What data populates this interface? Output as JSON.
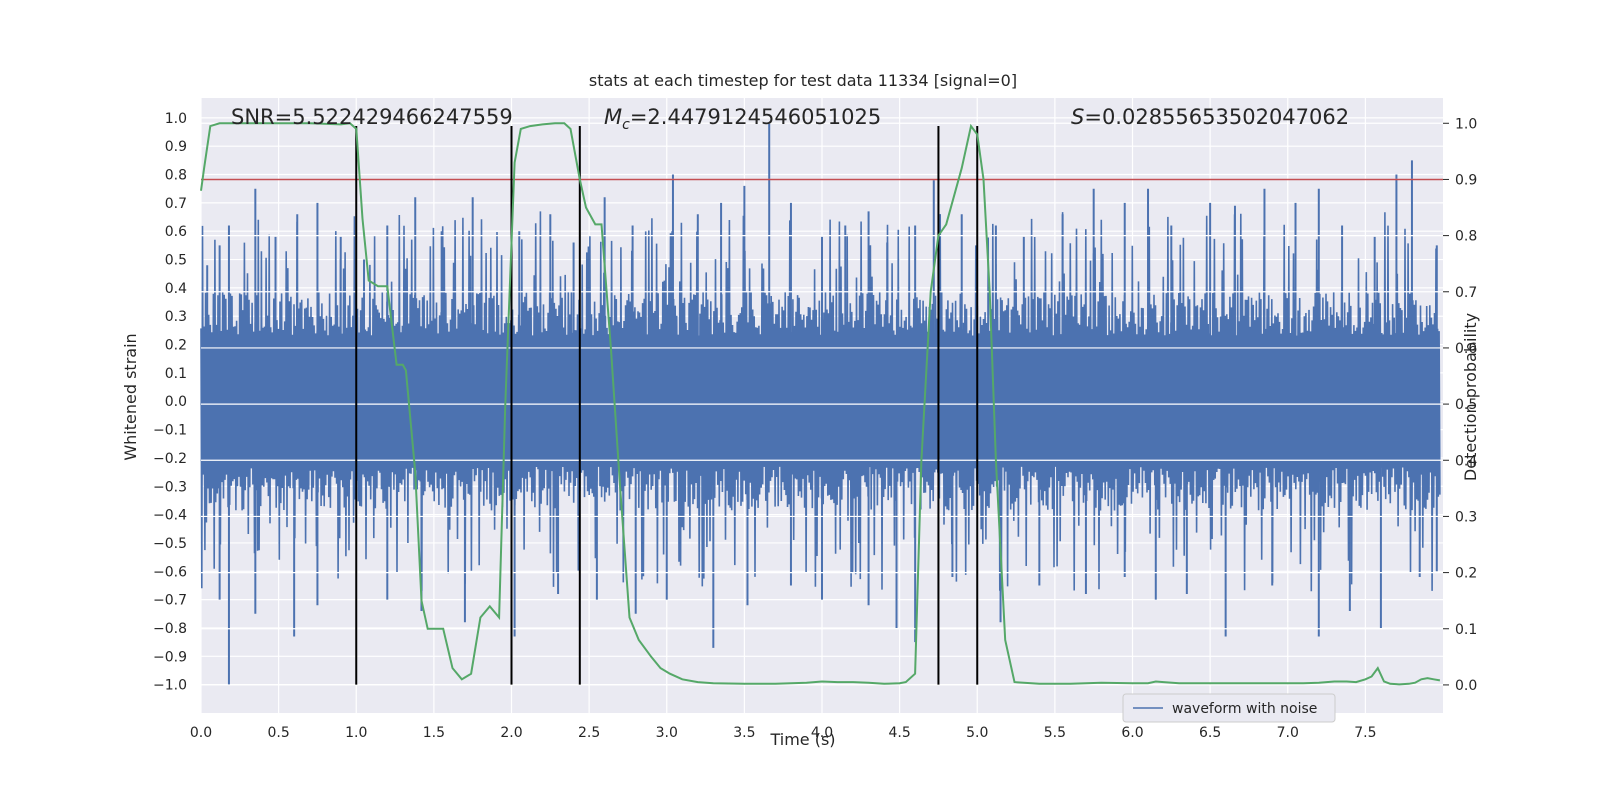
{
  "chart_data": {
    "type": "line",
    "title": "stats at each timestep for test data 11334 [signal=0]",
    "xlabel": "Time (s)",
    "ylabel_left": "Whitened strain",
    "ylabel_right": "Detection probability",
    "xlim": [
      0,
      8
    ],
    "ylim_left": [
      -1.1,
      1.07
    ],
    "ylim_right": [
      -0.05,
      1.045
    ],
    "x_ticks": [
      "0.0",
      "0.5",
      "1.0",
      "1.5",
      "2.0",
      "2.5",
      "3.0",
      "3.5",
      "4.0",
      "4.5",
      "5.0",
      "5.5",
      "6.0",
      "6.5",
      "7.0",
      "7.5"
    ],
    "y_left_ticks": [
      "1.0",
      "0.9",
      "0.8",
      "0.7",
      "0.6",
      "0.5",
      "0.4",
      "0.3",
      "0.2",
      "0.1",
      "0.0",
      "-0.1",
      "-0.2",
      "-0.3",
      "-0.4",
      "-0.5",
      "-0.6",
      "-0.7",
      "-0.8",
      "-0.9",
      "-1.0"
    ],
    "y_right_ticks": [
      "1.0",
      "0.9",
      "0.8",
      "0.7",
      "0.6",
      "0.5",
      "0.4",
      "0.3",
      "0.2",
      "0.1",
      "0.0"
    ],
    "annotations": {
      "snr": "SNR=5.522429466247559",
      "mc_symbol": "M",
      "mc_sub": "c",
      "mc_value": "=2.4479124546051025",
      "s_symbol": "S",
      "s_value": "=0.02855653502047062"
    },
    "threshold": {
      "value": 0.9,
      "color": "#c44e52"
    },
    "vertical_lines": [
      1.0,
      2.0,
      2.44,
      4.75,
      5.0
    ],
    "waveform": {
      "name": "waveform with noise",
      "color": "#4c72b0",
      "band": 0.42,
      "spike_peaks_pos": [
        [
          0.04,
          0.48
        ],
        [
          0.12,
          0.55
        ],
        [
          0.18,
          0.62
        ],
        [
          0.35,
          0.75
        ],
        [
          0.48,
          0.58
        ],
        [
          0.62,
          0.66
        ],
        [
          0.75,
          0.7
        ],
        [
          0.9,
          0.58
        ],
        [
          1.05,
          0.5
        ],
        [
          1.2,
          0.62
        ],
        [
          1.38,
          0.72
        ],
        [
          1.55,
          0.6
        ],
        [
          1.75,
          0.72
        ],
        [
          2.05,
          0.6
        ],
        [
          2.25,
          0.66
        ],
        [
          2.4,
          0.56
        ],
        [
          2.6,
          0.72
        ],
        [
          2.78,
          0.62
        ],
        [
          3.04,
          0.8
        ],
        [
          3.2,
          0.66
        ],
        [
          3.35,
          0.7
        ],
        [
          3.5,
          0.76
        ],
        [
          3.66,
          0.98
        ],
        [
          3.8,
          0.7
        ],
        [
          4.0,
          0.58
        ],
        [
          4.15,
          0.62
        ],
        [
          4.3,
          0.67
        ],
        [
          4.42,
          0.56
        ],
        [
          4.6,
          0.62
        ],
        [
          4.72,
          0.78
        ],
        [
          4.9,
          0.66
        ],
        [
          5.12,
          0.62
        ],
        [
          5.3,
          0.58
        ],
        [
          5.55,
          0.66
        ],
        [
          5.75,
          0.75
        ],
        [
          5.95,
          0.7
        ],
        [
          6.1,
          0.75
        ],
        [
          6.25,
          0.62
        ],
        [
          6.5,
          0.7
        ],
        [
          6.66,
          0.69
        ],
        [
          6.85,
          0.75
        ],
        [
          7.05,
          0.7
        ],
        [
          7.2,
          0.75
        ],
        [
          7.35,
          0.62
        ],
        [
          7.56,
          0.58
        ],
        [
          7.7,
          0.8
        ],
        [
          7.8,
          0.85
        ],
        [
          7.96,
          0.55
        ]
      ],
      "spike_peaks_neg": [
        [
          0.18,
          -1.0
        ],
        [
          0.12,
          -0.7
        ],
        [
          0.35,
          -0.75
        ],
        [
          0.6,
          -0.83
        ],
        [
          0.75,
          -0.72
        ],
        [
          1.2,
          -0.7
        ],
        [
          1.42,
          -0.74
        ],
        [
          1.7,
          -0.78
        ],
        [
          2.02,
          -0.83
        ],
        [
          2.3,
          -0.68
        ],
        [
          2.55,
          -0.7
        ],
        [
          2.8,
          -0.75
        ],
        [
          3.0,
          -0.7
        ],
        [
          3.3,
          -0.87
        ],
        [
          3.52,
          -0.72
        ],
        [
          3.8,
          -0.65
        ],
        [
          4.0,
          -0.7
        ],
        [
          4.3,
          -0.72
        ],
        [
          4.48,
          -0.8
        ],
        [
          4.6,
          -0.85
        ],
        [
          4.84,
          -0.62
        ],
        [
          5.15,
          -0.78
        ],
        [
          5.4,
          -0.65
        ],
        [
          5.7,
          -0.68
        ],
        [
          5.95,
          -0.62
        ],
        [
          6.15,
          -0.7
        ],
        [
          6.35,
          -0.68
        ],
        [
          6.6,
          -0.83
        ],
        [
          6.9,
          -0.65
        ],
        [
          7.2,
          -0.83
        ],
        [
          7.4,
          -0.74
        ],
        [
          7.6,
          -0.8
        ],
        [
          7.85,
          -0.62
        ],
        [
          7.96,
          -0.6
        ]
      ]
    },
    "detection_probability": {
      "color": "#55a868",
      "x": [
        0.0,
        0.02,
        0.06,
        0.12,
        0.3,
        0.5,
        0.7,
        0.9,
        0.96,
        1.0,
        1.04,
        1.08,
        1.14,
        1.2,
        1.26,
        1.3,
        1.32,
        1.38,
        1.42,
        1.46,
        1.5,
        1.56,
        1.62,
        1.68,
        1.74,
        1.8,
        1.86,
        1.92,
        1.96,
        2.02,
        2.06,
        2.12,
        2.2,
        2.28,
        2.34,
        2.38,
        2.44,
        2.48,
        2.54,
        2.58,
        2.64,
        2.7,
        2.76,
        2.82,
        2.9,
        2.96,
        3.02,
        3.1,
        3.2,
        3.3,
        3.5,
        3.7,
        3.9,
        4.0,
        4.1,
        4.2,
        4.3,
        4.4,
        4.5,
        4.54,
        4.6,
        4.64,
        4.7,
        4.75,
        4.8,
        4.86,
        4.9,
        4.96,
        5.0,
        5.04,
        5.08,
        5.12,
        5.18,
        5.24,
        5.4,
        5.6,
        5.8,
        6.0,
        6.1,
        6.15,
        6.2,
        6.3,
        6.5,
        6.7,
        6.9,
        7.1,
        7.2,
        7.3,
        7.38,
        7.44,
        7.5,
        7.54,
        7.58,
        7.62,
        7.66,
        7.72,
        7.78,
        7.82,
        7.86,
        7.9,
        7.94,
        7.98
      ],
      "y": [
        0.88,
        0.92,
        0.995,
        1.0,
        1.0,
        1.0,
        1.0,
        0.998,
        1.0,
        0.99,
        0.83,
        0.72,
        0.71,
        0.71,
        0.57,
        0.57,
        0.56,
        0.38,
        0.15,
        0.1,
        0.1,
        0.1,
        0.03,
        0.01,
        0.02,
        0.12,
        0.14,
        0.12,
        0.5,
        0.93,
        0.99,
        0.995,
        0.998,
        1.0,
        1.0,
        0.99,
        0.9,
        0.85,
        0.82,
        0.82,
        0.6,
        0.35,
        0.12,
        0.08,
        0.05,
        0.03,
        0.02,
        0.01,
        0.005,
        0.003,
        0.002,
        0.002,
        0.004,
        0.006,
        0.005,
        0.005,
        0.004,
        0.002,
        0.003,
        0.005,
        0.02,
        0.4,
        0.7,
        0.8,
        0.82,
        0.88,
        0.92,
        0.995,
        0.98,
        0.9,
        0.7,
        0.4,
        0.08,
        0.005,
        0.002,
        0.002,
        0.004,
        0.003,
        0.003,
        0.006,
        0.005,
        0.003,
        0.003,
        0.003,
        0.003,
        0.003,
        0.004,
        0.006,
        0.006,
        0.005,
        0.01,
        0.015,
        0.03,
        0.006,
        0.002,
        0.001,
        0.002,
        0.004,
        0.01,
        0.012,
        0.01,
        0.008
      ]
    },
    "legend": {
      "label": "waveform with noise",
      "position": "lower-right"
    }
  }
}
